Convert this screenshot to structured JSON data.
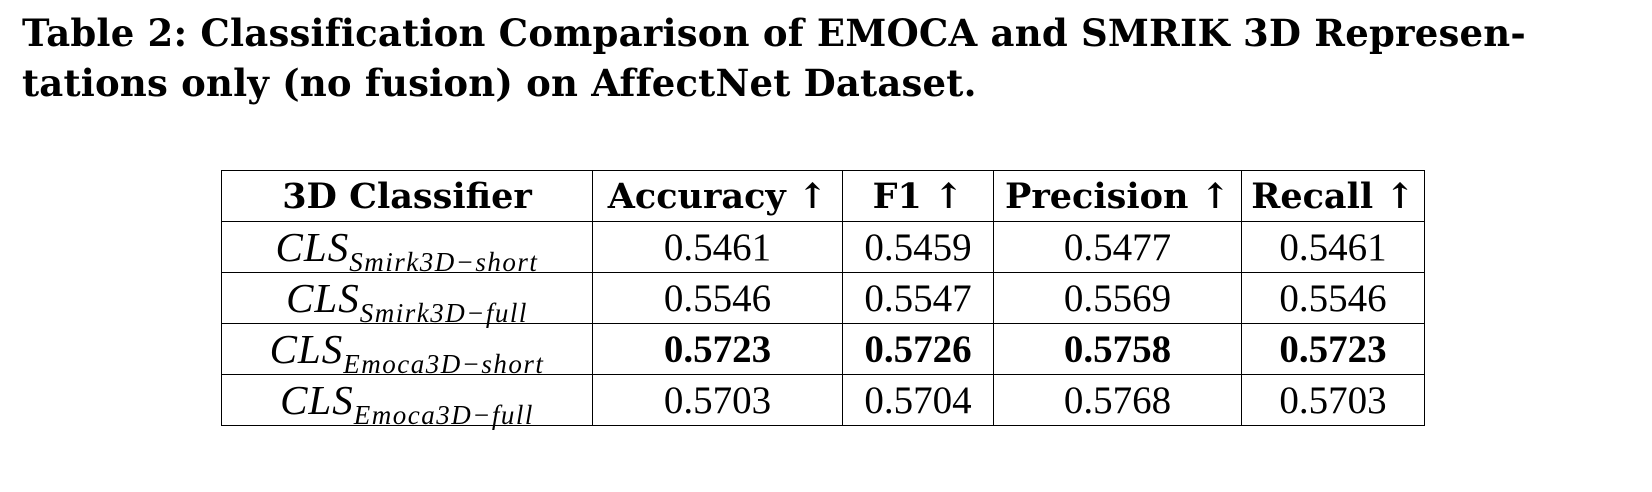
{
  "caption": {
    "line1": "Table 2: Classification Comparison of EMOCA and SMRIK 3D Represen-",
    "line2": "tations only (no fusion) on AffectNet Dataset."
  },
  "table": {
    "headers": [
      "3D Classifier",
      "Accuracy ↑",
      "F1 ↑",
      "Precision ↑",
      "Recall ↑"
    ],
    "rows": [
      {
        "classifier_main": "CLS",
        "classifier_sub": "Smirk3D−short",
        "accuracy": "0.5461",
        "f1": "0.5459",
        "precision": "0.5477",
        "recall": "0.5461",
        "bold": false
      },
      {
        "classifier_main": "CLS",
        "classifier_sub": "Smirk3D−full",
        "accuracy": "0.5546",
        "f1": "0.5547",
        "precision": "0.5569",
        "recall": "0.5546",
        "bold": false
      },
      {
        "classifier_main": "CLS",
        "classifier_sub": "Emoca3D−short",
        "accuracy": "0.5723",
        "f1": "0.5726",
        "precision": "0.5758",
        "recall": "0.5723",
        "bold": true
      },
      {
        "classifier_main": "CLS",
        "classifier_sub": "Emoca3D−full",
        "accuracy": "0.5703",
        "f1": "0.5704",
        "precision": "0.5768",
        "recall": "0.5703",
        "bold": false
      }
    ]
  }
}
